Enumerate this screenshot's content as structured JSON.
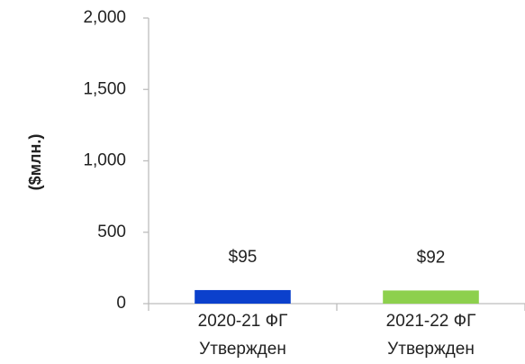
{
  "chart_data": {
    "type": "bar",
    "y_label": "($млн.)",
    "categories": [
      [
        "2020-21 ФГ",
        "Утвержден"
      ],
      [
        "2021-22 ФГ",
        "Утвержден"
      ]
    ],
    "values": [
      95,
      92
    ],
    "value_labels": [
      "$95",
      "$92"
    ],
    "colors": [
      "#0b40cc",
      "#8dd04d"
    ],
    "ylim": [
      0,
      2000
    ],
    "yticks": [
      0,
      500,
      {
        "value": 1000,
        "label": "1,000"
      },
      {
        "value": 1500,
        "label": "1,500"
      },
      {
        "value": 2000,
        "label": "2,000"
      }
    ],
    "grid": false
  }
}
